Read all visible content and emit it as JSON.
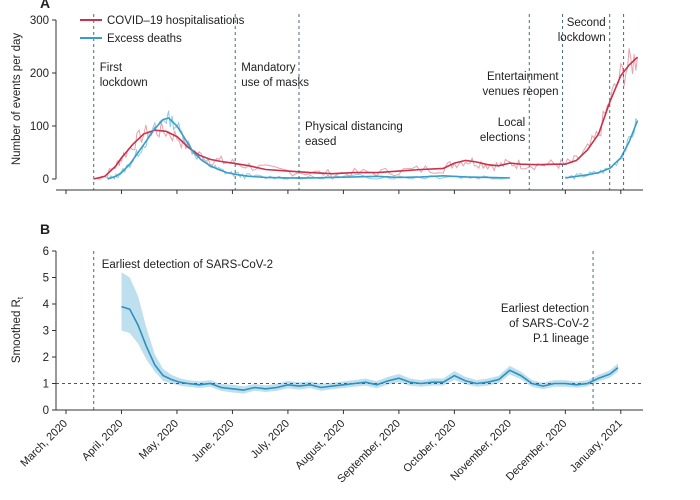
{
  "chart_data": [
    {
      "panel": "A",
      "type": "line",
      "ylabel": "Number of events per day",
      "ylim": [
        0,
        300
      ],
      "yticks": [
        0,
        100,
        200,
        300
      ],
      "xlim": [
        0,
        10.4
      ],
      "x_unit": "months since 1 March 2020",
      "legend_position": "top-left",
      "series": [
        {
          "name": "COVID–19 hospitalisations",
          "color": "#c8324b",
          "raw_color": "#e8a1ab",
          "x": [
            0.5,
            0.7,
            0.9,
            1.0,
            1.2,
            1.4,
            1.6,
            1.8,
            2.0,
            2.2,
            2.4,
            2.6,
            2.8,
            3.0,
            3.3,
            3.6,
            4.0,
            4.4,
            4.8,
            5.2,
            5.6,
            6.0,
            6.4,
            6.8,
            7.0,
            7.2,
            7.4,
            7.6,
            7.8,
            8.0,
            8.2,
            8.5,
            8.8,
            9.0,
            9.2,
            9.4,
            9.6,
            9.8,
            10.0,
            10.15,
            10.3
          ],
          "values": [
            0,
            5,
            25,
            40,
            65,
            85,
            92,
            90,
            80,
            60,
            45,
            37,
            33,
            30,
            25,
            18,
            15,
            12,
            10,
            12,
            12,
            15,
            18,
            20,
            30,
            35,
            32,
            27,
            25,
            30,
            28,
            27,
            28,
            28,
            35,
            55,
            85,
            145,
            195,
            215,
            230
          ]
        },
        {
          "name": "Excess deaths",
          "color": "#3a9cc8",
          "raw_color": "#8fcbe2",
          "segments": [
            {
              "x": [
                0.75,
                0.9,
                1.0,
                1.15,
                1.3,
                1.45,
                1.6,
                1.75,
                1.85,
                2.0,
                2.15,
                2.3,
                2.45,
                2.6,
                2.75,
                2.9,
                3.1,
                3.3,
                3.6,
                4.0,
                4.4,
                4.8,
                5.2,
                5.6,
                6.0,
                6.4,
                6.8,
                7.2,
                7.6,
                8.0
              ],
              "values": [
                0,
                5,
                12,
                28,
                50,
                72,
                95,
                112,
                115,
                100,
                75,
                50,
                35,
                25,
                18,
                12,
                8,
                5,
                3,
                2,
                2,
                3,
                4,
                5,
                3,
                4,
                6,
                4,
                3,
                2
              ]
            },
            {
              "x": [
                9.0,
                9.2,
                9.4,
                9.6,
                9.8,
                10.0,
                10.15,
                10.3
              ],
              "values": [
                2,
                5,
                8,
                12,
                20,
                40,
                70,
                110
              ]
            }
          ]
        }
      ],
      "event_lines": [
        {
          "x": 0.5,
          "label": [
            "First",
            "lockdown"
          ]
        },
        {
          "x": 3.05,
          "label": [
            "Mandatory",
            "use of masks"
          ]
        },
        {
          "x": 4.2,
          "label": [
            "Physical distancing",
            "eased"
          ]
        },
        {
          "x": 8.35,
          "label": [
            "Local",
            "elections"
          ]
        },
        {
          "x": 8.95,
          "label": [
            "Entertainment",
            "venues reopen"
          ]
        },
        {
          "x": 9.8,
          "label": [
            "Second",
            "lockdown"
          ]
        },
        {
          "x": 10.05,
          "label": []
        }
      ]
    },
    {
      "panel": "B",
      "type": "line",
      "ylabel": "Smoothed R",
      "ylabel_subscript": "t",
      "ylim": [
        0,
        6
      ],
      "yticks": [
        0,
        1,
        2,
        3,
        4,
        5,
        6
      ],
      "xlim": [
        0,
        10.4
      ],
      "reference_line": 1,
      "categories": [
        "March, 2020",
        "April, 2020",
        "May, 2020",
        "June, 2020",
        "July, 2020",
        "August, 2020",
        "September, 2020",
        "October, 2020",
        "November, 2020",
        "December, 2020",
        "January, 2021"
      ],
      "series": [
        {
          "name": "Smoothed Rt",
          "color": "#2f8fbe",
          "band_color": "#a8d6e8",
          "x": [
            1.0,
            1.15,
            1.3,
            1.45,
            1.6,
            1.75,
            1.9,
            2.05,
            2.2,
            2.4,
            2.6,
            2.8,
            3.0,
            3.2,
            3.4,
            3.6,
            3.8,
            4.0,
            4.2,
            4.4,
            4.6,
            4.8,
            5.0,
            5.2,
            5.4,
            5.6,
            5.8,
            6.0,
            6.2,
            6.4,
            6.6,
            6.8,
            7.0,
            7.2,
            7.4,
            7.6,
            7.8,
            8.0,
            8.2,
            8.4,
            8.6,
            8.8,
            9.0,
            9.2,
            9.4,
            9.6,
            9.8,
            9.95
          ],
          "values": [
            3.9,
            3.8,
            3.2,
            2.4,
            1.7,
            1.3,
            1.15,
            1.05,
            1.0,
            0.95,
            1.0,
            0.85,
            0.8,
            0.75,
            0.85,
            0.8,
            0.85,
            0.95,
            0.9,
            0.95,
            0.85,
            0.9,
            0.95,
            1.0,
            1.05,
            0.95,
            1.1,
            1.2,
            1.05,
            1.0,
            1.05,
            1.05,
            1.3,
            1.1,
            1.0,
            1.05,
            1.15,
            1.5,
            1.3,
            1.0,
            0.9,
            1.0,
            1.0,
            0.95,
            1.0,
            1.2,
            1.35,
            1.6
          ],
          "lower": [
            3.0,
            2.9,
            2.5,
            1.9,
            1.45,
            1.1,
            1.0,
            0.92,
            0.88,
            0.83,
            0.88,
            0.72,
            0.66,
            0.62,
            0.73,
            0.68,
            0.72,
            0.82,
            0.77,
            0.83,
            0.72,
            0.78,
            0.83,
            0.88,
            0.92,
            0.82,
            0.96,
            1.05,
            0.92,
            0.88,
            0.92,
            0.92,
            1.14,
            0.97,
            0.88,
            0.92,
            1.02,
            1.34,
            1.16,
            0.88,
            0.78,
            0.88,
            0.88,
            0.84,
            0.89,
            1.08,
            1.22,
            1.45
          ],
          "upper": [
            5.2,
            5.0,
            4.3,
            3.1,
            2.1,
            1.55,
            1.33,
            1.2,
            1.13,
            1.08,
            1.13,
            0.98,
            0.95,
            0.89,
            0.98,
            0.93,
            0.99,
            1.1,
            1.04,
            1.08,
            0.99,
            1.03,
            1.08,
            1.13,
            1.19,
            1.09,
            1.25,
            1.36,
            1.19,
            1.13,
            1.19,
            1.19,
            1.47,
            1.25,
            1.13,
            1.19,
            1.29,
            1.67,
            1.45,
            1.13,
            1.03,
            1.13,
            1.13,
            1.07,
            1.12,
            1.33,
            1.49,
            1.76
          ]
        }
      ],
      "event_lines": [
        {
          "x": 0.5,
          "label": [
            "Earliest detection of SARS-CoV-2"
          ]
        },
        {
          "x": 9.5,
          "label": [
            "Earliest detection",
            "of SARS-CoV-2",
            "P.1 lineage"
          ]
        }
      ]
    }
  ],
  "panel_labels": {
    "a": "A",
    "b": "B"
  },
  "legend": {
    "hosp": "COVID–19 hospitalisations",
    "excess": "Excess deaths"
  }
}
